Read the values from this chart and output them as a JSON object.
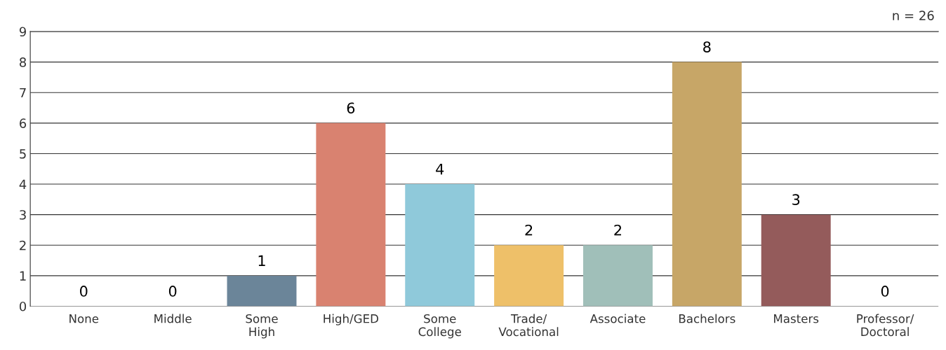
{
  "chart_data": {
    "type": "bar",
    "categories": [
      "None",
      "Middle",
      "Some\nHigh",
      "High/GED",
      "Some\nCollege",
      "Trade/\nVocational",
      "Associate",
      "Bachelors",
      "Masters",
      "Professor/\nDoctoral"
    ],
    "values": [
      0,
      0,
      1,
      6,
      4,
      2,
      2,
      8,
      3,
      0
    ],
    "colors": [
      "#6b8599",
      "#6b8599",
      "#6b8599",
      "#d98270",
      "#8fc9da",
      "#eec069",
      "#a0bfb9",
      "#c7a667",
      "#945b5b",
      "#945b5b"
    ],
    "ylim": [
      0,
      9
    ],
    "yticks": [
      0,
      1,
      2,
      3,
      4,
      5,
      6,
      7,
      8,
      9
    ],
    "grid": "y",
    "data_labels": true,
    "annotations": [
      "n = 26"
    ]
  }
}
